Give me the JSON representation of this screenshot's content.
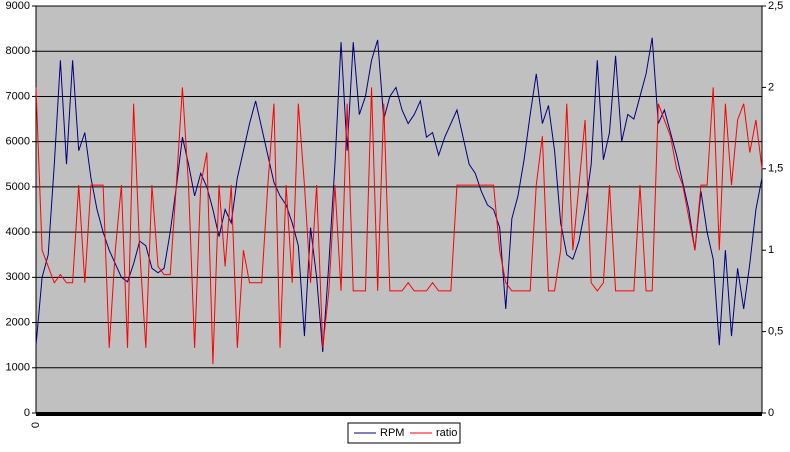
{
  "chart_data": {
    "type": "line",
    "categories": [
      "0",
      null,
      null,
      null,
      null,
      null,
      null,
      null,
      null,
      null,
      null,
      null,
      null,
      null,
      null,
      null,
      null,
      null,
      null,
      null,
      null,
      null,
      null,
      null,
      null,
      null,
      null,
      null,
      null,
      null,
      null,
      null,
      null,
      null,
      null,
      null,
      null,
      null,
      null,
      null,
      null,
      null,
      null,
      null,
      null,
      null,
      null,
      null,
      null,
      null,
      null,
      null,
      null,
      null,
      null,
      null,
      null,
      null,
      null,
      null,
      null,
      null,
      null,
      null,
      null,
      null,
      null,
      null,
      null,
      null,
      null,
      null,
      null,
      null,
      null,
      null,
      null,
      null,
      null,
      null,
      null,
      null,
      null,
      null,
      null,
      null,
      null,
      null,
      null,
      null,
      null,
      null,
      null,
      null,
      null,
      null,
      null,
      null,
      null,
      null,
      null,
      null,
      null,
      null,
      null,
      null,
      null,
      null,
      null,
      null,
      null,
      null,
      null,
      null,
      null,
      null,
      null,
      null,
      null,
      null
    ],
    "series": [
      {
        "name": "RPM",
        "color": "#000080",
        "values": [
          1500,
          3000,
          3500,
          5500,
          7800,
          5500,
          7800,
          5800,
          6200,
          5200,
          4500,
          4000,
          3600,
          3300,
          3000,
          2900,
          3300,
          3800,
          3700,
          3200,
          3100,
          3200,
          4000,
          5000,
          6100,
          5500,
          4800,
          5300,
          5000,
          4500,
          3900,
          4500,
          4200,
          5200,
          5800,
          6400,
          6900,
          6300,
          5700,
          5100,
          4800,
          4600,
          4200,
          3700,
          1700,
          4100,
          3000,
          1350,
          3300,
          5500,
          8200,
          5800,
          8200,
          6600,
          7000,
          7800,
          8250,
          6500,
          7000,
          7200,
          6700,
          6400,
          6600,
          6900,
          6100,
          6200,
          5700,
          6100,
          6400,
          6700,
          6100,
          5500,
          5300,
          4900,
          4600,
          4500,
          4100,
          2300,
          4300,
          4800,
          5600,
          6600,
          7500,
          6400,
          6800,
          5800,
          4200,
          3500,
          3400,
          3800,
          4500,
          5500,
          7800,
          5600,
          6200,
          7900,
          6000,
          6600,
          6500,
          7000,
          7500,
          8300,
          6400,
          6700,
          6200,
          5700,
          5100,
          4500,
          3600,
          4900,
          4000,
          3400,
          1500,
          3600,
          1700,
          3200,
          2300,
          3300,
          4500,
          5200
        ]
      },
      {
        "name": "ratio",
        "color": "#ff0000",
        "axis": "y2",
        "values": [
          2,
          1,
          0.9,
          0.8,
          0.85,
          0.8,
          0.8,
          1.4,
          0.8,
          1.4,
          1.4,
          1.4,
          0.4,
          1.0,
          1.4,
          0.4,
          1.9,
          1.0,
          0.4,
          1.4,
          0.9,
          0.85,
          0.85,
          1.4,
          2.0,
          1.4,
          0.4,
          1.4,
          1.6,
          0.3,
          1.4,
          0.9,
          1.4,
          0.4,
          1.0,
          0.8,
          0.8,
          0.8,
          1.4,
          1.9,
          0.4,
          1.4,
          0.8,
          1.9,
          1.4,
          0.8,
          1.4,
          0.4,
          0.75,
          1.4,
          0.75,
          1.9,
          0.75,
          0.75,
          0.75,
          2.0,
          0.75,
          1.9,
          0.75,
          0.75,
          0.75,
          0.8,
          0.75,
          0.75,
          0.75,
          0.8,
          0.75,
          0.75,
          0.75,
          1.4,
          1.4,
          1.4,
          1.4,
          1.4,
          1.4,
          1.4,
          1.0,
          0.8,
          0.75,
          0.75,
          0.75,
          0.75,
          1.4,
          1.7,
          0.75,
          0.75,
          1.0,
          1.9,
          1.0,
          1.4,
          1.8,
          0.8,
          0.75,
          0.8,
          1.4,
          0.75,
          0.75,
          0.75,
          0.75,
          1.4,
          0.75,
          0.75,
          1.9,
          1.8,
          1.7,
          1.5,
          1.4,
          1.2,
          1.0,
          1.4,
          1.4,
          2.0,
          1.0,
          1.9,
          1.4,
          1.8,
          1.9,
          1.6,
          1.8,
          1.5
        ]
      }
    ],
    "ylim": [
      0,
      9000
    ],
    "yticks": [
      0,
      1000,
      2000,
      3000,
      4000,
      5000,
      6000,
      7000,
      8000,
      9000
    ],
    "y2lim": [
      0,
      2.5
    ],
    "y2ticks": [
      0,
      {
        "value": 0.5,
        "label": "0,5"
      },
      1,
      {
        "value": 1.5,
        "label": "1,5"
      },
      2,
      {
        "value": 2.5,
        "label": "2,5"
      }
    ],
    "grid": true,
    "legend": "bottom"
  }
}
